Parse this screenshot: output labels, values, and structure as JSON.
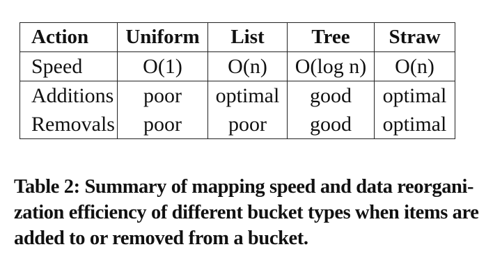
{
  "table": {
    "headers": [
      "Action",
      "Uniform",
      "List",
      "Tree",
      "Straw"
    ],
    "rows": [
      [
        "Speed",
        "O(1)",
        "O(n)",
        "O(log n)",
        "O(n)"
      ],
      [
        "Additions",
        "poor",
        "optimal",
        "good",
        "optimal"
      ],
      [
        "Removals",
        "poor",
        "poor",
        "good",
        "optimal"
      ]
    ]
  },
  "caption": {
    "lines": [
      "Table 2: Summary of mapping speed and data reorgani-",
      "zation efficiency of different bucket types when items are",
      "added to or removed from a bucket."
    ]
  }
}
